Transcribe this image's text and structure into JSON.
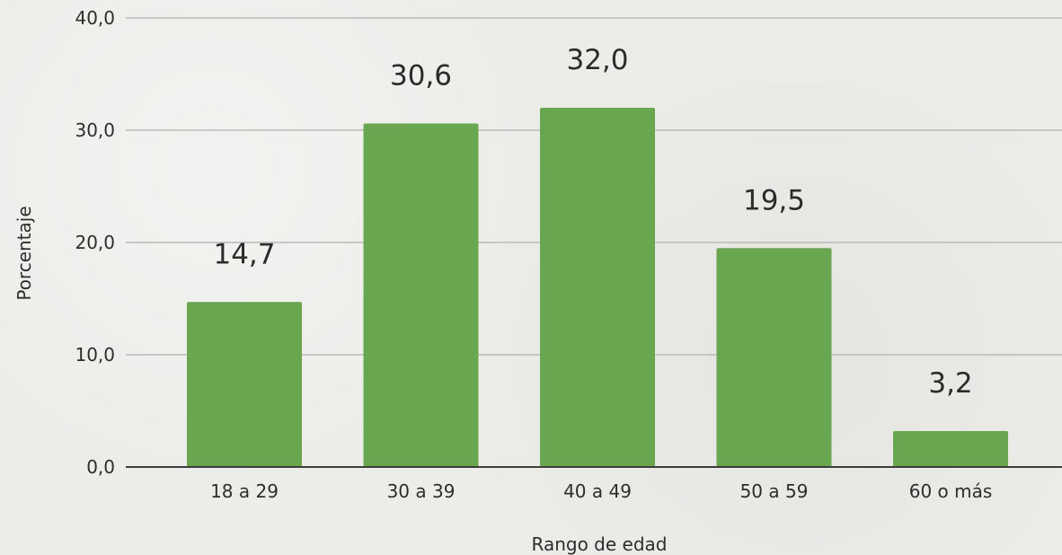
{
  "chart_data": {
    "type": "bar",
    "categories": [
      "18 a 29",
      "30 a 39",
      "40 a 49",
      "50 a 59",
      "60 o más"
    ],
    "values": [
      14.7,
      30.6,
      32.0,
      19.5,
      3.2
    ],
    "value_labels": [
      "14,7",
      "30,6",
      "32,0",
      "19,5",
      "3,2"
    ],
    "xlabel": "Rango de edad",
    "ylabel": "Porcentaje",
    "ylim": [
      0,
      40
    ],
    "yticks": [
      0,
      10,
      20,
      30,
      40
    ],
    "ytick_labels": [
      "0,0",
      "10,0",
      "20,0",
      "30,0",
      "40,0"
    ],
    "grid": true,
    "bar_color": "#68a64f"
  }
}
